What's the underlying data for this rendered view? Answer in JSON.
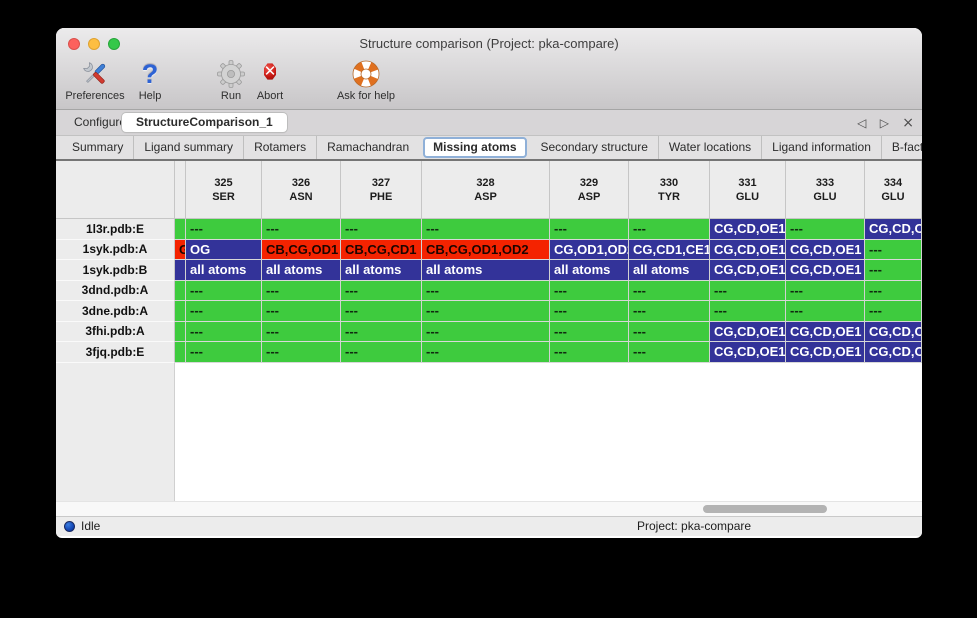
{
  "window": {
    "title": "Structure comparison (Project: pka-compare)"
  },
  "toolbar": {
    "items": [
      {
        "label": "Preferences",
        "icon": "tools-icon"
      },
      {
        "label": "Help",
        "icon": "question-mark-icon"
      },
      {
        "label": "Run",
        "icon": "gear-icon"
      },
      {
        "label": "Abort",
        "icon": "stop-icon"
      },
      {
        "label": "Ask for help",
        "icon": "lifebuoy-icon"
      }
    ]
  },
  "doc_tabs": {
    "tabs": [
      {
        "label": "Configure",
        "active": false
      },
      {
        "label": "StructureComparison_1",
        "active": true
      }
    ],
    "prev": "◁",
    "next": "▷",
    "close": "×"
  },
  "sub_tabs": {
    "tabs": [
      "Summary",
      "Ligand summary",
      "Rotamers",
      "Ramachandran",
      "Missing atoms",
      "Secondary structure",
      "Water locations",
      "Ligand information",
      "B-factors"
    ],
    "active_index": 4,
    "prev": "◁",
    "next": "▷"
  },
  "table": {
    "col_headers": [
      {
        "num": "325",
        "res": "SER"
      },
      {
        "num": "326",
        "res": "ASN"
      },
      {
        "num": "327",
        "res": "PHE"
      },
      {
        "num": "328",
        "res": "ASP"
      },
      {
        "num": "329",
        "res": "ASP"
      },
      {
        "num": "330",
        "res": "TYR"
      },
      {
        "num": "331",
        "res": "GLU"
      },
      {
        "num": "333",
        "res": "GLU"
      },
      {
        "num": "334",
        "res": "GLU"
      }
    ],
    "rows": [
      {
        "label": "1l3r.pdb:E",
        "cells": [
          [
            "green",
            ""
          ],
          [
            "green",
            "---"
          ],
          [
            "green",
            "---"
          ],
          [
            "green",
            "---"
          ],
          [
            "green",
            "---"
          ],
          [
            "green",
            "---"
          ],
          [
            "green",
            "---"
          ],
          [
            "blue",
            "CG,CD,OE1"
          ],
          [
            "green",
            "---"
          ],
          [
            "blue",
            "CG,CD,OE1"
          ]
        ]
      },
      {
        "label": "1syk.pdb:A",
        "cells": [
          [
            "red",
            "G"
          ],
          [
            "blue",
            "OG"
          ],
          [
            "red",
            "CB,CG,OD1"
          ],
          [
            "red",
            "CB,CG,CD1"
          ],
          [
            "red",
            "CB,CG,OD1,OD2"
          ],
          [
            "blue",
            "CG,OD1,OD2"
          ],
          [
            "blue",
            "CG,CD1,CE1"
          ],
          [
            "blue",
            "CG,CD,OE1"
          ],
          [
            "blue",
            "CG,CD,OE1"
          ],
          [
            "green",
            "---"
          ]
        ]
      },
      {
        "label": "1syk.pdb:B",
        "cells": [
          [
            "blue",
            ""
          ],
          [
            "blue",
            "all atoms"
          ],
          [
            "blue",
            "all atoms"
          ],
          [
            "blue",
            "all atoms"
          ],
          [
            "blue",
            "all atoms"
          ],
          [
            "blue",
            "all atoms"
          ],
          [
            "blue",
            "all atoms"
          ],
          [
            "blue",
            "CG,CD,OE1"
          ],
          [
            "blue",
            "CG,CD,OE1"
          ],
          [
            "green",
            "---"
          ]
        ]
      },
      {
        "label": "3dnd.pdb:A",
        "cells": [
          [
            "green",
            ""
          ],
          [
            "green",
            "---"
          ],
          [
            "green",
            "---"
          ],
          [
            "green",
            "---"
          ],
          [
            "green",
            "---"
          ],
          [
            "green",
            "---"
          ],
          [
            "green",
            "---"
          ],
          [
            "green",
            "---"
          ],
          [
            "green",
            "---"
          ],
          [
            "green",
            "---"
          ]
        ]
      },
      {
        "label": "3dne.pdb:A",
        "cells": [
          [
            "green",
            ""
          ],
          [
            "green",
            "---"
          ],
          [
            "green",
            "---"
          ],
          [
            "green",
            "---"
          ],
          [
            "green",
            "---"
          ],
          [
            "green",
            "---"
          ],
          [
            "green",
            "---"
          ],
          [
            "green",
            "---"
          ],
          [
            "green",
            "---"
          ],
          [
            "green",
            "---"
          ]
        ]
      },
      {
        "label": "3fhi.pdb:A",
        "cells": [
          [
            "green",
            ""
          ],
          [
            "green",
            "---"
          ],
          [
            "green",
            "---"
          ],
          [
            "green",
            "---"
          ],
          [
            "green",
            "---"
          ],
          [
            "green",
            "---"
          ],
          [
            "green",
            "---"
          ],
          [
            "blue",
            "CG,CD,OE1"
          ],
          [
            "blue",
            "CG,CD,OE1"
          ],
          [
            "blue",
            "CG,CD,OE1"
          ]
        ]
      },
      {
        "label": "3fjq.pdb:E",
        "cells": [
          [
            "green",
            ""
          ],
          [
            "green",
            "---"
          ],
          [
            "green",
            "---"
          ],
          [
            "green",
            "---"
          ],
          [
            "green",
            "---"
          ],
          [
            "green",
            "---"
          ],
          [
            "green",
            "---"
          ],
          [
            "blue",
            "CG,CD,OE1"
          ],
          [
            "blue",
            "CG,CD,OE1"
          ],
          [
            "blue",
            "CG,CD,OE1"
          ]
        ]
      }
    ]
  },
  "statusbar": {
    "state": "Idle",
    "project": "Project: pka-compare"
  },
  "colors": {
    "green": "#3ecb3e",
    "red": "#f42300",
    "blue": "#333399"
  }
}
